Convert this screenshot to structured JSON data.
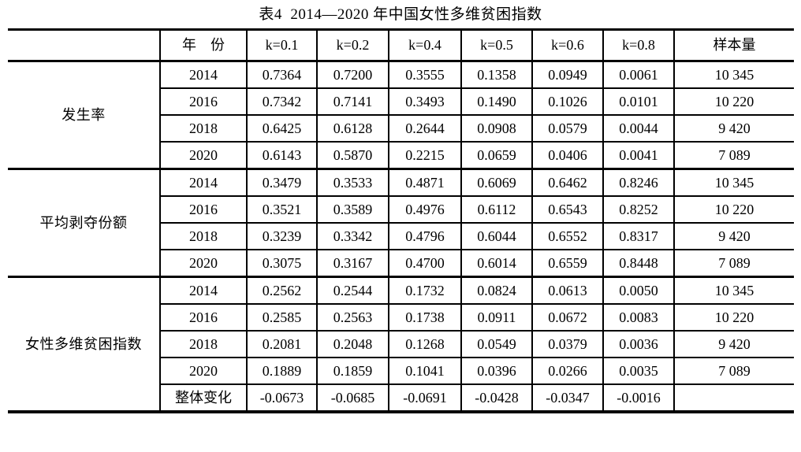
{
  "title": "表4  2014—2020 年中国女性多维贫困指数",
  "table": {
    "header": [
      "",
      "年　份",
      "k=0.1",
      "k=0.2",
      "k=0.4",
      "k=0.5",
      "k=0.6",
      "k=0.8",
      "样本量"
    ],
    "groups": [
      {
        "label": "发生率",
        "rows": [
          {
            "year": "2014",
            "values": [
              "0.7364",
              "0.7200",
              "0.3555",
              "0.1358",
              "0.0949",
              "0.0061"
            ],
            "sample": "10 345"
          },
          {
            "year": "2016",
            "values": [
              "0.7342",
              "0.7141",
              "0.3493",
              "0.1490",
              "0.1026",
              "0.0101"
            ],
            "sample": "10 220"
          },
          {
            "year": "2018",
            "values": [
              "0.6425",
              "0.6128",
              "0.2644",
              "0.0908",
              "0.0579",
              "0.0044"
            ],
            "sample": "9 420"
          },
          {
            "year": "2020",
            "values": [
              "0.6143",
              "0.5870",
              "0.2215",
              "0.0659",
              "0.0406",
              "0.0041"
            ],
            "sample": "7 089"
          }
        ]
      },
      {
        "label": "平均剥夺份额",
        "rows": [
          {
            "year": "2014",
            "values": [
              "0.3479",
              "0.3533",
              "0.4871",
              "0.6069",
              "0.6462",
              "0.8246"
            ],
            "sample": "10 345"
          },
          {
            "year": "2016",
            "values": [
              "0.3521",
              "0.3589",
              "0.4976",
              "0.6112",
              "0.6543",
              "0.8252"
            ],
            "sample": "10 220"
          },
          {
            "year": "2018",
            "values": [
              "0.3239",
              "0.3342",
              "0.4796",
              "0.6044",
              "0.6552",
              "0.8317"
            ],
            "sample": "9 420"
          },
          {
            "year": "2020",
            "values": [
              "0.3075",
              "0.3167",
              "0.4700",
              "0.6014",
              "0.6559",
              "0.8448"
            ],
            "sample": "7 089"
          }
        ]
      },
      {
        "label": "女性多维贫困指数",
        "rows": [
          {
            "year": "2014",
            "values": [
              "0.2562",
              "0.2544",
              "0.1732",
              "0.0824",
              "0.0613",
              "0.0050"
            ],
            "sample": "10 345"
          },
          {
            "year": "2016",
            "values": [
              "0.2585",
              "0.2563",
              "0.1738",
              "0.0911",
              "0.0672",
              "0.0083"
            ],
            "sample": "10 220"
          },
          {
            "year": "2018",
            "values": [
              "0.2081",
              "0.2048",
              "0.1268",
              "0.0549",
              "0.0379",
              "0.0036"
            ],
            "sample": "9 420"
          },
          {
            "year": "2020",
            "values": [
              "0.1889",
              "0.1859",
              "0.1041",
              "0.0396",
              "0.0266",
              "0.0035"
            ],
            "sample": "7 089"
          },
          {
            "year": "整体变化",
            "values": [
              "-0.0673",
              "-0.0685",
              "-0.0691",
              "-0.0428",
              "-0.0347",
              "-0.0016"
            ],
            "sample": ""
          }
        ]
      }
    ]
  },
  "colors": {
    "border": "#000000",
    "text": "#000000",
    "background": "#ffffff"
  }
}
